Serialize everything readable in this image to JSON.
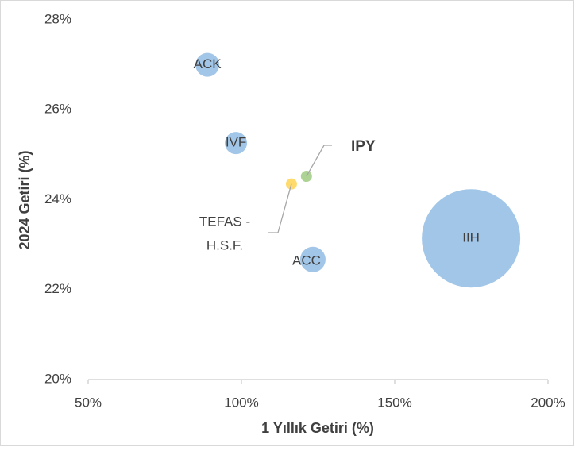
{
  "chart_data": {
    "type": "bubble",
    "xlabel": "1 Yıllık Getiri (%)",
    "ylabel": "2024 Getiri (%)",
    "labels": [
      "ACK",
      "IVF",
      "IPY",
      [
        "TEFAS -",
        "H.S.F."
      ],
      "ACC",
      "IIH"
    ],
    "x": [
      88.9,
      98.2,
      121.2,
      116.3,
      123.3,
      174.9
    ],
    "values": [
      27.0,
      25.26,
      24.52,
      24.35,
      22.67,
      23.14
    ],
    "sizes": [
      225,
      196,
      49,
      49,
      256,
      3844
    ],
    "colors": [
      "#9dc3e6",
      "#9dc3e6",
      "#a9d18e",
      "#ffd966",
      "#9dc3e6",
      "#9dc3e6"
    ],
    "xlim": [
      50,
      200
    ],
    "xticks": [
      {
        "value": 50,
        "label": "50%"
      },
      {
        "value": 100,
        "label": "100%"
      },
      {
        "value": 150,
        "label": "150%"
      },
      {
        "value": 200,
        "label": "200%"
      }
    ],
    "ylim": [
      20,
      28
    ],
    "yticks": [
      {
        "value": 20,
        "label": "20%"
      },
      {
        "value": 22,
        "label": "22%"
      },
      {
        "value": 24,
        "label": "24%"
      },
      {
        "value": 26,
        "label": "26%"
      },
      {
        "value": 28,
        "label": "28%"
      }
    ]
  }
}
